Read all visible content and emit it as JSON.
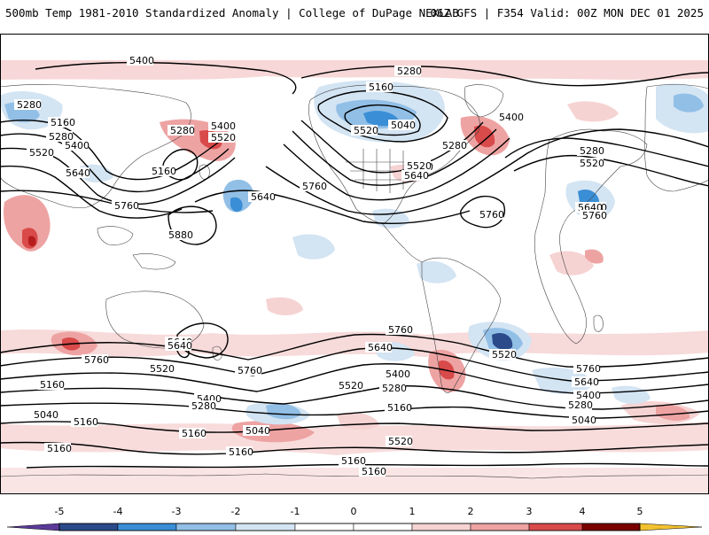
{
  "header": {
    "title": "500mb Temp 1981-2010 Standardized Anomaly | College of DuPage NEXLAB",
    "run_info": "06Z GFS | F354 Valid: 00Z MON DEC 01 2025"
  },
  "colors": {
    "neg5": "#5b3a99",
    "neg4": "#2a4a8a",
    "neg3": "#3a8ed6",
    "neg2": "#92bfe6",
    "neg1": "#d3e4f3",
    "pos1": "#f6d3d3",
    "pos2": "#eea3a3",
    "pos3": "#d94a4a",
    "pos4": "#b61c1c",
    "pos5": "#7a0000",
    "pos_tip": "#f2c12e",
    "contour": "#000000",
    "coast": "#444444",
    "frame": "#000000"
  },
  "contour_labels": [
    "5400",
    "5280",
    "5160",
    "5040",
    "5280",
    "5400",
    "5520",
    "5160",
    "5280",
    "5520",
    "5400",
    "5640",
    "5160",
    "5760",
    "5280",
    "5400",
    "5520",
    "5640",
    "5760",
    "5880",
    "5640",
    "5760",
    "5520",
    "5640",
    "5280",
    "5520",
    "5640",
    "5760",
    "5280",
    "5520",
    "5640",
    "5760",
    "5760",
    "5640",
    "5400",
    "5520",
    "5280",
    "5160",
    "5520",
    "5640",
    "5760",
    "5400",
    "5280",
    "5160",
    "5160",
    "5040",
    "5160",
    "5040",
    "5160",
    "5160",
    "5160",
    "5160",
    "5040",
    "5760",
    "5640",
    "5520",
    "5400",
    "5280",
    "5160",
    "5520"
  ],
  "colorbar": {
    "ticks": [
      "-5",
      "-4",
      "-3",
      "-2",
      "-1",
      "0",
      "1",
      "2",
      "3",
      "4",
      "5"
    ]
  }
}
